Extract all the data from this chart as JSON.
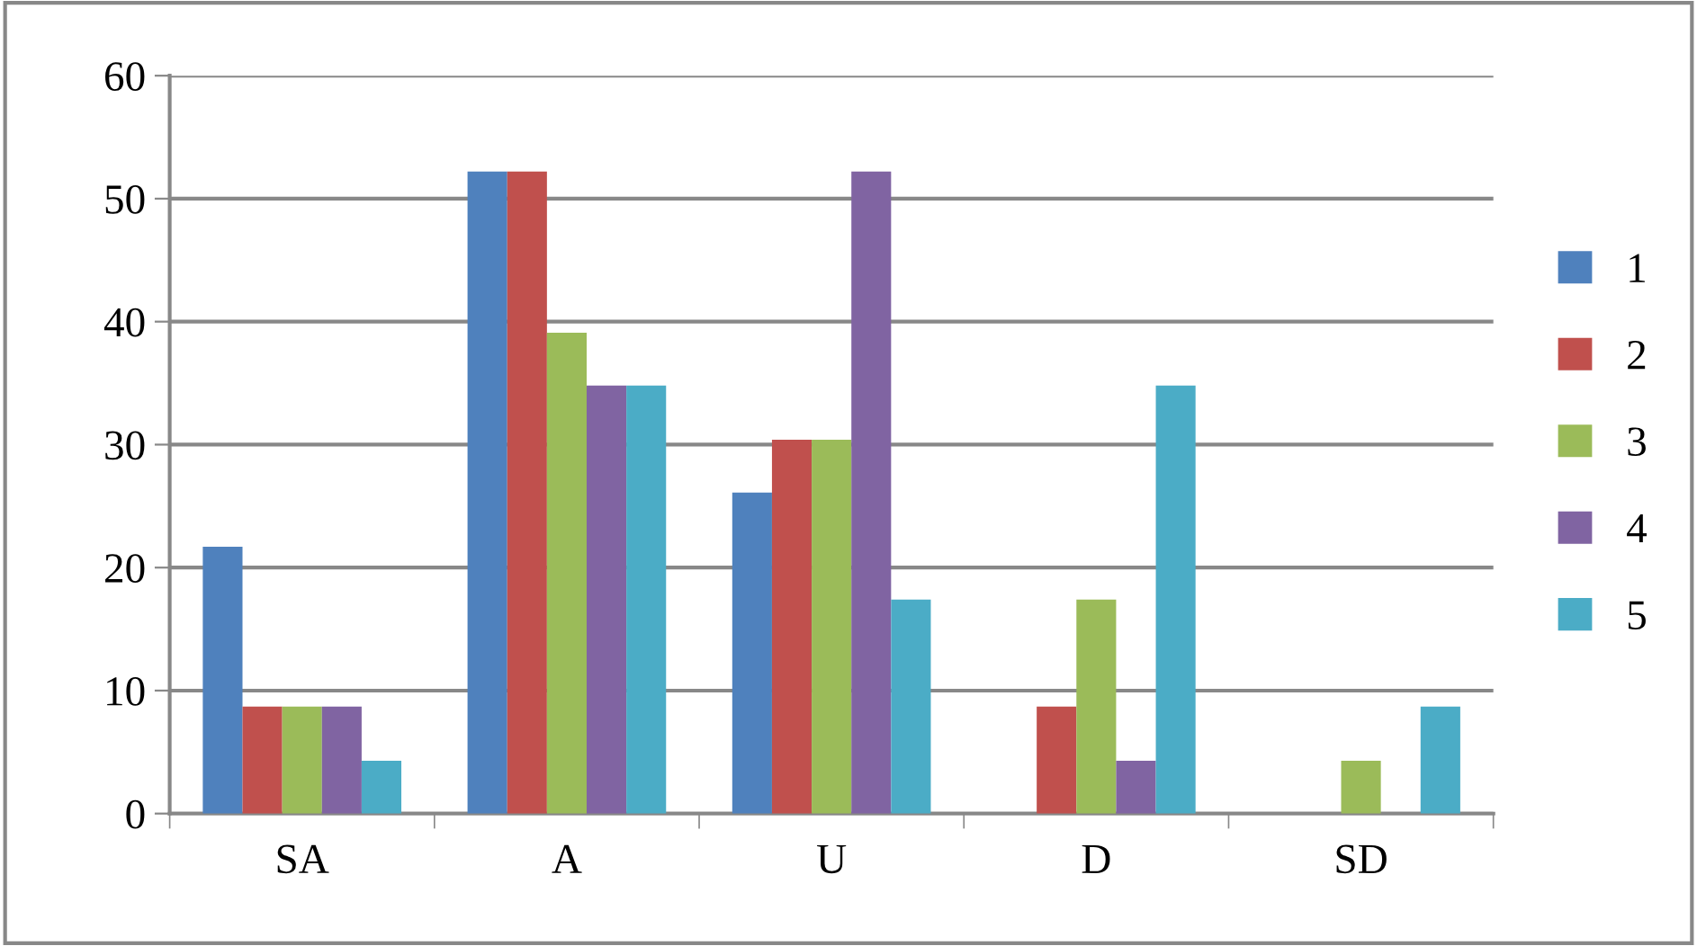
{
  "chart_data": {
    "type": "bar",
    "categories": [
      "SA",
      "A",
      "U",
      "D",
      "SD"
    ],
    "series": [
      {
        "name": "1",
        "color": "#4f81bd",
        "values": [
          21.7,
          52.2,
          26.1,
          0,
          0
        ]
      },
      {
        "name": "2",
        "color": "#c0504d",
        "values": [
          8.7,
          52.2,
          30.4,
          8.7,
          0
        ]
      },
      {
        "name": "3",
        "color": "#9bbb59",
        "values": [
          8.7,
          39.1,
          30.4,
          17.4,
          4.3
        ]
      },
      {
        "name": "4",
        "color": "#8064a2",
        "values": [
          8.7,
          34.8,
          52.2,
          4.3,
          0
        ]
      },
      {
        "name": "5",
        "color": "#4bacc6",
        "values": [
          4.3,
          34.8,
          17.4,
          34.8,
          8.7
        ]
      }
    ],
    "ylim": [
      0,
      60
    ],
    "yticks": [
      0,
      10,
      20,
      30,
      40,
      50,
      60
    ],
    "grid": "y",
    "legend": "right"
  }
}
